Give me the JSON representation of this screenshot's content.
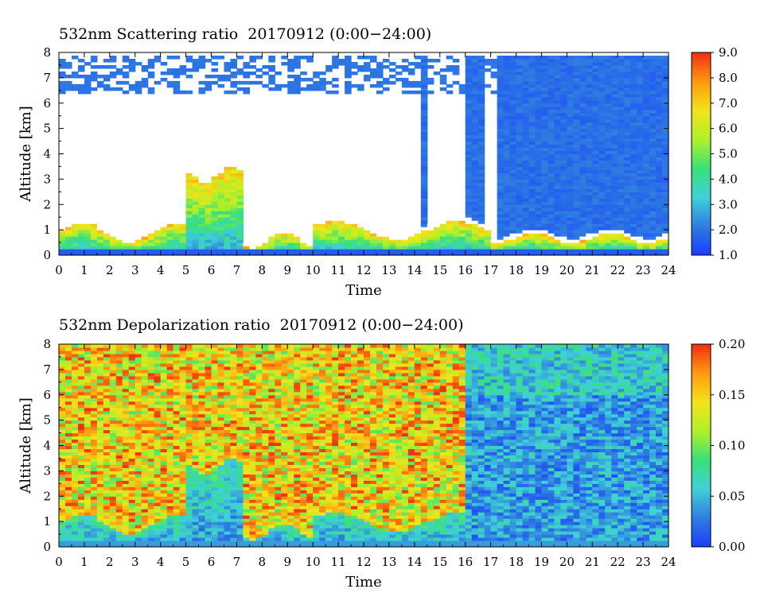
{
  "chart_data": [
    {
      "type": "heatmap",
      "title": "532nm Scattering ratio  20170912 (0:00−24:00)",
      "xlabel": "Time",
      "ylabel": "Altitude [km]",
      "xlim": [
        0,
        24
      ],
      "ylim": [
        0,
        8
      ],
      "xticks": [
        "0",
        "1",
        "2",
        "3",
        "4",
        "5",
        "6",
        "7",
        "8",
        "9",
        "10",
        "11",
        "12",
        "13",
        "14",
        "15",
        "16",
        "17",
        "18",
        "19",
        "20",
        "21",
        "22",
        "23",
        "24"
      ],
      "yticks": [
        "0",
        "1",
        "2",
        "3",
        "4",
        "5",
        "6",
        "7",
        "8"
      ],
      "colorbar": {
        "min": 1.0,
        "max": 9.0,
        "ticks": [
          "1.0",
          "2.0",
          "3.0",
          "4.0",
          "5.0",
          "6.0",
          "7.0",
          "8.0",
          "9.0"
        ]
      },
      "colormap": [
        "#1a3cff",
        "#2f7de0",
        "#3fd0d8",
        "#39e07a",
        "#aef02a",
        "#f2e41a",
        "#ff9a10",
        "#f03010"
      ]
    },
    {
      "type": "heatmap",
      "title": "532nm Depolarization ratio  20170912 (0:00−24:00)",
      "xlabel": "Time",
      "ylabel": "Altitude [km]",
      "xlim": [
        0,
        24
      ],
      "ylim": [
        0,
        8
      ],
      "xticks": [
        "0",
        "1",
        "2",
        "3",
        "4",
        "5",
        "6",
        "7",
        "8",
        "9",
        "10",
        "11",
        "12",
        "13",
        "14",
        "15",
        "16",
        "17",
        "18",
        "19",
        "20",
        "21",
        "22",
        "23",
        "24"
      ],
      "yticks": [
        "0",
        "1",
        "2",
        "3",
        "4",
        "5",
        "6",
        "7",
        "8"
      ],
      "colorbar": {
        "min": 0.0,
        "max": 0.2,
        "ticks": [
          "0.00",
          "0.05",
          "0.10",
          "0.15",
          "0.20"
        ]
      },
      "colormap": [
        "#1a3cff",
        "#2f7de0",
        "#3fd0d8",
        "#39e07a",
        "#aef02a",
        "#f2e41a",
        "#ff9a10",
        "#f03010"
      ]
    }
  ]
}
